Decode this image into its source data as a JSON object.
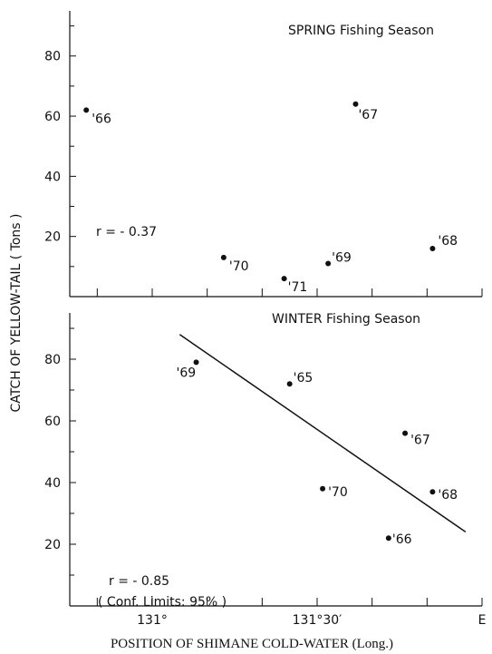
{
  "chart_data": [
    {
      "type": "scatter",
      "title": "SPRING Fishing Season",
      "ylabel": "CATCH OF YELLOW-TAIL ( Tons )",
      "xlabel": "POSITION OF SHIMANE COLD-WATER (Long.)",
      "xlim_minutes_east_of_131": [
        -15,
        60
      ],
      "ylim": [
        0,
        95
      ],
      "y_ticks": [
        20,
        40,
        60,
        80
      ],
      "y_tick_labels": [
        "20",
        "40",
        "60",
        "80"
      ],
      "points": [
        {
          "label": "'66",
          "x": -12,
          "y": 62
        },
        {
          "label": "'67",
          "x": 37,
          "y": 64
        },
        {
          "label": "'68",
          "x": 51,
          "y": 16
        },
        {
          "label": "'69",
          "x": 32,
          "y": 11
        },
        {
          "label": "'70",
          "x": 13,
          "y": 13
        },
        {
          "label": "'71",
          "x": 24,
          "y": 6
        }
      ],
      "annotation": "r = - 0.37"
    },
    {
      "type": "scatter",
      "title": "WINTER Fishing Season",
      "ylabel": "CATCH OF YELLOW-TAIL ( Tons )",
      "xlabel": "POSITION OF SHIMANE COLD-WATER (Long.)",
      "xlim_minutes_east_of_131": [
        -15,
        60
      ],
      "ylim": [
        0,
        95
      ],
      "y_ticks": [
        20,
        40,
        60,
        80
      ],
      "y_tick_labels": [
        "20",
        "40",
        "60",
        "80"
      ],
      "x_tick_labels": [
        {
          "label": "131°",
          "x": 0
        },
        {
          "label": "131°30′",
          "x": 30
        },
        {
          "label": "E",
          "x": 60
        }
      ],
      "points": [
        {
          "label": "'69",
          "x": 8,
          "y": 79
        },
        {
          "label": "'65",
          "x": 25,
          "y": 72
        },
        {
          "label": "'67",
          "x": 46,
          "y": 56
        },
        {
          "label": "'70",
          "x": 31,
          "y": 38
        },
        {
          "label": "'68",
          "x": 51,
          "y": 37
        },
        {
          "label": "'66",
          "x": 43,
          "y": 22
        }
      ],
      "regression_line": {
        "x": [
          5,
          57
        ],
        "y": [
          88,
          24
        ]
      },
      "annotation": "r = - 0.85",
      "annotation2": "( Conf. Limits: 95% )"
    }
  ],
  "style": {
    "ink": "#111111",
    "background": "#ffffff"
  }
}
